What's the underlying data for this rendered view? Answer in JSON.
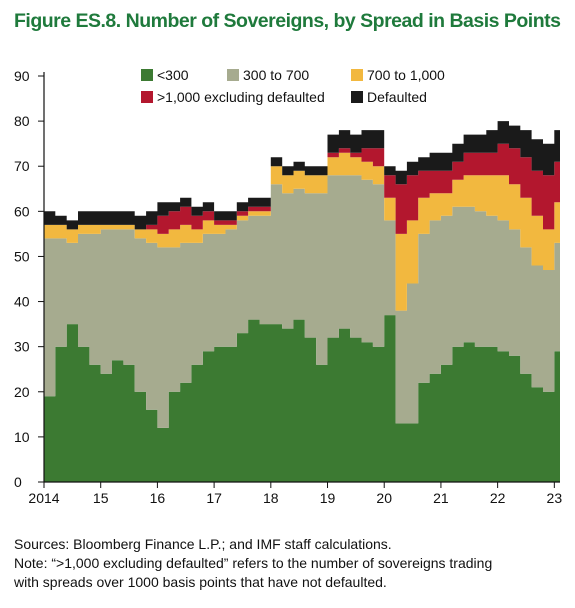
{
  "title": "Figure ES.8. Number of Sovereigns, by Spread in Basis Points",
  "sources": "Sources: Bloomberg Finance L.P.; and IMF staff calculations.",
  "note_line1": "Note: “>1,000 excluding defaulted” refers to the number of sovereigns trading",
  "note_line2": "with spreads over 1000 basis points that have not defaulted.",
  "chart_data": {
    "type": "area",
    "stacked": true,
    "title": "Figure ES.8. Number of Sovereigns, by Spread in Basis Points",
    "xlabel": "",
    "ylabel": "",
    "ylim": [
      0,
      90
    ],
    "yticks": [
      0,
      10,
      20,
      30,
      40,
      50,
      60,
      70,
      80,
      90
    ],
    "xlim": [
      2014.0,
      2023.1
    ],
    "xticks": [
      {
        "value": 2014,
        "label": "2014"
      },
      {
        "value": 2015,
        "label": "15"
      },
      {
        "value": 2016,
        "label": "16"
      },
      {
        "value": 2017,
        "label": "17"
      },
      {
        "value": 2018,
        "label": "18"
      },
      {
        "value": 2019,
        "label": "19"
      },
      {
        "value": 2020,
        "label": "20"
      },
      {
        "value": 2021,
        "label": "21"
      },
      {
        "value": 2022,
        "label": "22"
      },
      {
        "value": 2023,
        "label": "23"
      }
    ],
    "grid": false,
    "legend_position": "top",
    "x": [
      2014.0,
      2014.2,
      2014.4,
      2014.6,
      2014.8,
      2015.0,
      2015.2,
      2015.4,
      2015.6,
      2015.8,
      2016.0,
      2016.2,
      2016.4,
      2016.6,
      2016.8,
      2017.0,
      2017.2,
      2017.4,
      2017.6,
      2017.8,
      2018.0,
      2018.2,
      2018.4,
      2018.6,
      2018.8,
      2019.0,
      2019.2,
      2019.4,
      2019.6,
      2019.8,
      2020.0,
      2020.2,
      2020.4,
      2020.6,
      2020.8,
      2021.0,
      2021.2,
      2021.4,
      2021.6,
      2021.8,
      2022.0,
      2022.2,
      2022.4,
      2022.6,
      2022.8,
      2023.0
    ],
    "series": [
      {
        "name": "<300",
        "color": "#3c7a32",
        "values": [
          19,
          30,
          35,
          30,
          26,
          24,
          27,
          26,
          20,
          16,
          12,
          20,
          22,
          26,
          29,
          30,
          30,
          33,
          36,
          35,
          35,
          34,
          36,
          32,
          26,
          32,
          34,
          32,
          31,
          30,
          37,
          13,
          13,
          22,
          24,
          26,
          30,
          31,
          30,
          30,
          29,
          28,
          24,
          21,
          20,
          29
        ]
      },
      {
        "name": "300 to 700",
        "color": "#a6ab8f",
        "values": [
          35,
          24,
          18,
          25,
          29,
          32,
          29,
          30,
          34,
          37,
          40,
          32,
          31,
          27,
          26,
          25,
          26,
          25,
          23,
          24,
          31,
          30,
          29,
          32,
          38,
          36,
          34,
          36,
          36,
          36,
          21,
          25,
          31,
          33,
          34,
          33,
          31,
          30,
          30,
          29,
          29,
          28,
          28,
          27,
          27,
          24
        ]
      },
      {
        "name": "700 to 1,000",
        "color": "#f2b83f",
        "values": [
          3,
          3,
          3,
          2,
          2,
          1,
          1,
          1,
          2,
          3,
          3,
          4,
          4,
          3,
          3,
          2,
          1,
          1,
          1,
          1,
          4,
          4,
          4,
          4,
          4,
          4,
          5,
          4,
          4,
          4,
          5,
          17,
          14,
          8,
          6,
          5,
          6,
          7,
          8,
          9,
          10,
          10,
          11,
          11,
          9,
          9
        ]
      },
      {
        "name": ">1,000 excluding defaulted",
        "color": "#b3172e",
        "values": [
          0,
          0,
          0,
          0,
          0,
          0,
          0,
          0,
          0,
          1,
          4,
          4,
          4,
          3,
          2,
          1,
          1,
          1,
          1,
          1,
          0,
          0,
          0,
          0,
          0,
          1,
          1,
          1,
          3,
          4,
          5,
          11,
          10,
          6,
          5,
          5,
          4,
          5,
          5,
          5,
          7,
          8,
          9,
          10,
          12,
          9
        ]
      },
      {
        "name": "Defaulted",
        "color": "#1a1a1a",
        "values": [
          3,
          2,
          2,
          3,
          3,
          3,
          3,
          3,
          3,
          3,
          3,
          2,
          2,
          2,
          2,
          2,
          2,
          2,
          2,
          2,
          2,
          2,
          2,
          2,
          2,
          4,
          4,
          4,
          4,
          4,
          2,
          3,
          3,
          3,
          4,
          4,
          4,
          4,
          4,
          5,
          5,
          5,
          6,
          7,
          7,
          7
        ]
      }
    ]
  }
}
